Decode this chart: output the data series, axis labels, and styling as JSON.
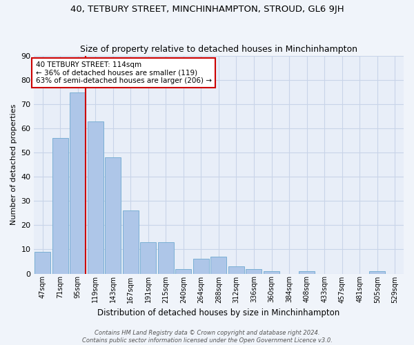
{
  "title": "40, TETBURY STREET, MINCHINHAMPTON, STROUD, GL6 9JH",
  "subtitle": "Size of property relative to detached houses in Minchinhampton",
  "xlabel": "Distribution of detached houses by size in Minchinhampton",
  "ylabel": "Number of detached properties",
  "categories": [
    "47sqm",
    "71sqm",
    "95sqm",
    "119sqm",
    "143sqm",
    "167sqm",
    "191sqm",
    "215sqm",
    "240sqm",
    "264sqm",
    "288sqm",
    "312sqm",
    "336sqm",
    "360sqm",
    "384sqm",
    "408sqm",
    "433sqm",
    "457sqm",
    "481sqm",
    "505sqm",
    "529sqm"
  ],
  "values": [
    9,
    56,
    75,
    63,
    48,
    26,
    13,
    13,
    2,
    6,
    7,
    3,
    2,
    1,
    0,
    1,
    0,
    0,
    0,
    1,
    0
  ],
  "bar_color": "#aec6e8",
  "bar_edge_color": "#7aafd4",
  "vline_x_index": 2,
  "vline_color": "#cc0000",
  "annotation_line1": "40 TETBURY STREET: 114sqm",
  "annotation_line2": "← 36% of detached houses are smaller (119)",
  "annotation_line3": "63% of semi-detached houses are larger (206) →",
  "annotation_box_color": "#ffffff",
  "annotation_box_edge": "#cc0000",
  "ylim": [
    0,
    90
  ],
  "yticks": [
    0,
    10,
    20,
    30,
    40,
    50,
    60,
    70,
    80,
    90
  ],
  "grid_color": "#c8d4e8",
  "bg_color": "#e8eef8",
  "fig_bg_color": "#f0f4fa",
  "footer_line1": "Contains HM Land Registry data © Crown copyright and database right 2024.",
  "footer_line2": "Contains public sector information licensed under the Open Government Licence v3.0."
}
